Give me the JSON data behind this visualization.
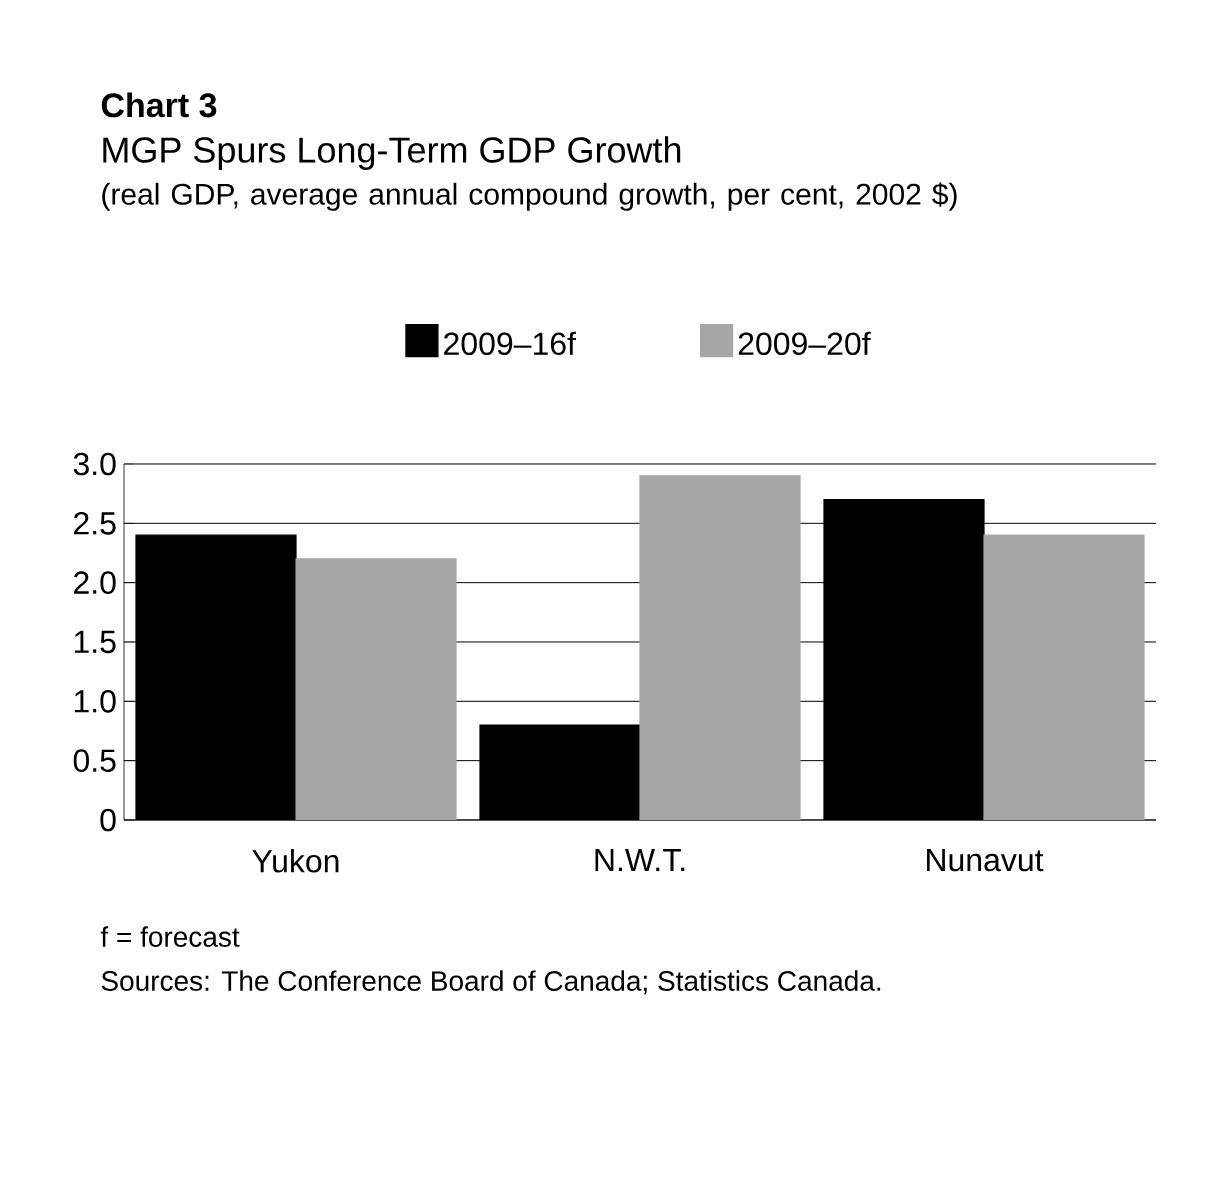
{
  "chart_data": {
    "type": "bar",
    "title": "Chart 3",
    "subtitle": "MGP Spurs Long-Term GDP Growth",
    "categories": [
      "Yukon",
      "N.W.T.",
      "Nunavut"
    ],
    "series": [
      {
        "name": "2009–16f",
        "color": "#000000",
        "values": [
          2.4,
          0.8,
          2.7
        ]
      },
      {
        "name": "2009–20f",
        "color": "#a6a6a6",
        "values": [
          2.2,
          2.9,
          2.4
        ]
      }
    ],
    "ylim": [
      0,
      3.0
    ],
    "yticks": [
      0,
      {
        "value": 0.5,
        "label": "0.5"
      },
      {
        "value": 1.0,
        "label": "1.0"
      },
      {
        "value": 1.5,
        "label": "1.5"
      },
      {
        "value": 2.0,
        "label": "2.0"
      },
      {
        "value": 2.5,
        "label": "2.5"
      },
      {
        "value": 3.0,
        "label": "3.0"
      }
    ],
    "grid": "y",
    "legend": "top",
    "annotations": [
      "(real GDP, average annual compound growth, per cent, 2002 $)",
      "f = forecast",
      "Sources: The Conference Board of Canada; Statistics Canada."
    ]
  }
}
